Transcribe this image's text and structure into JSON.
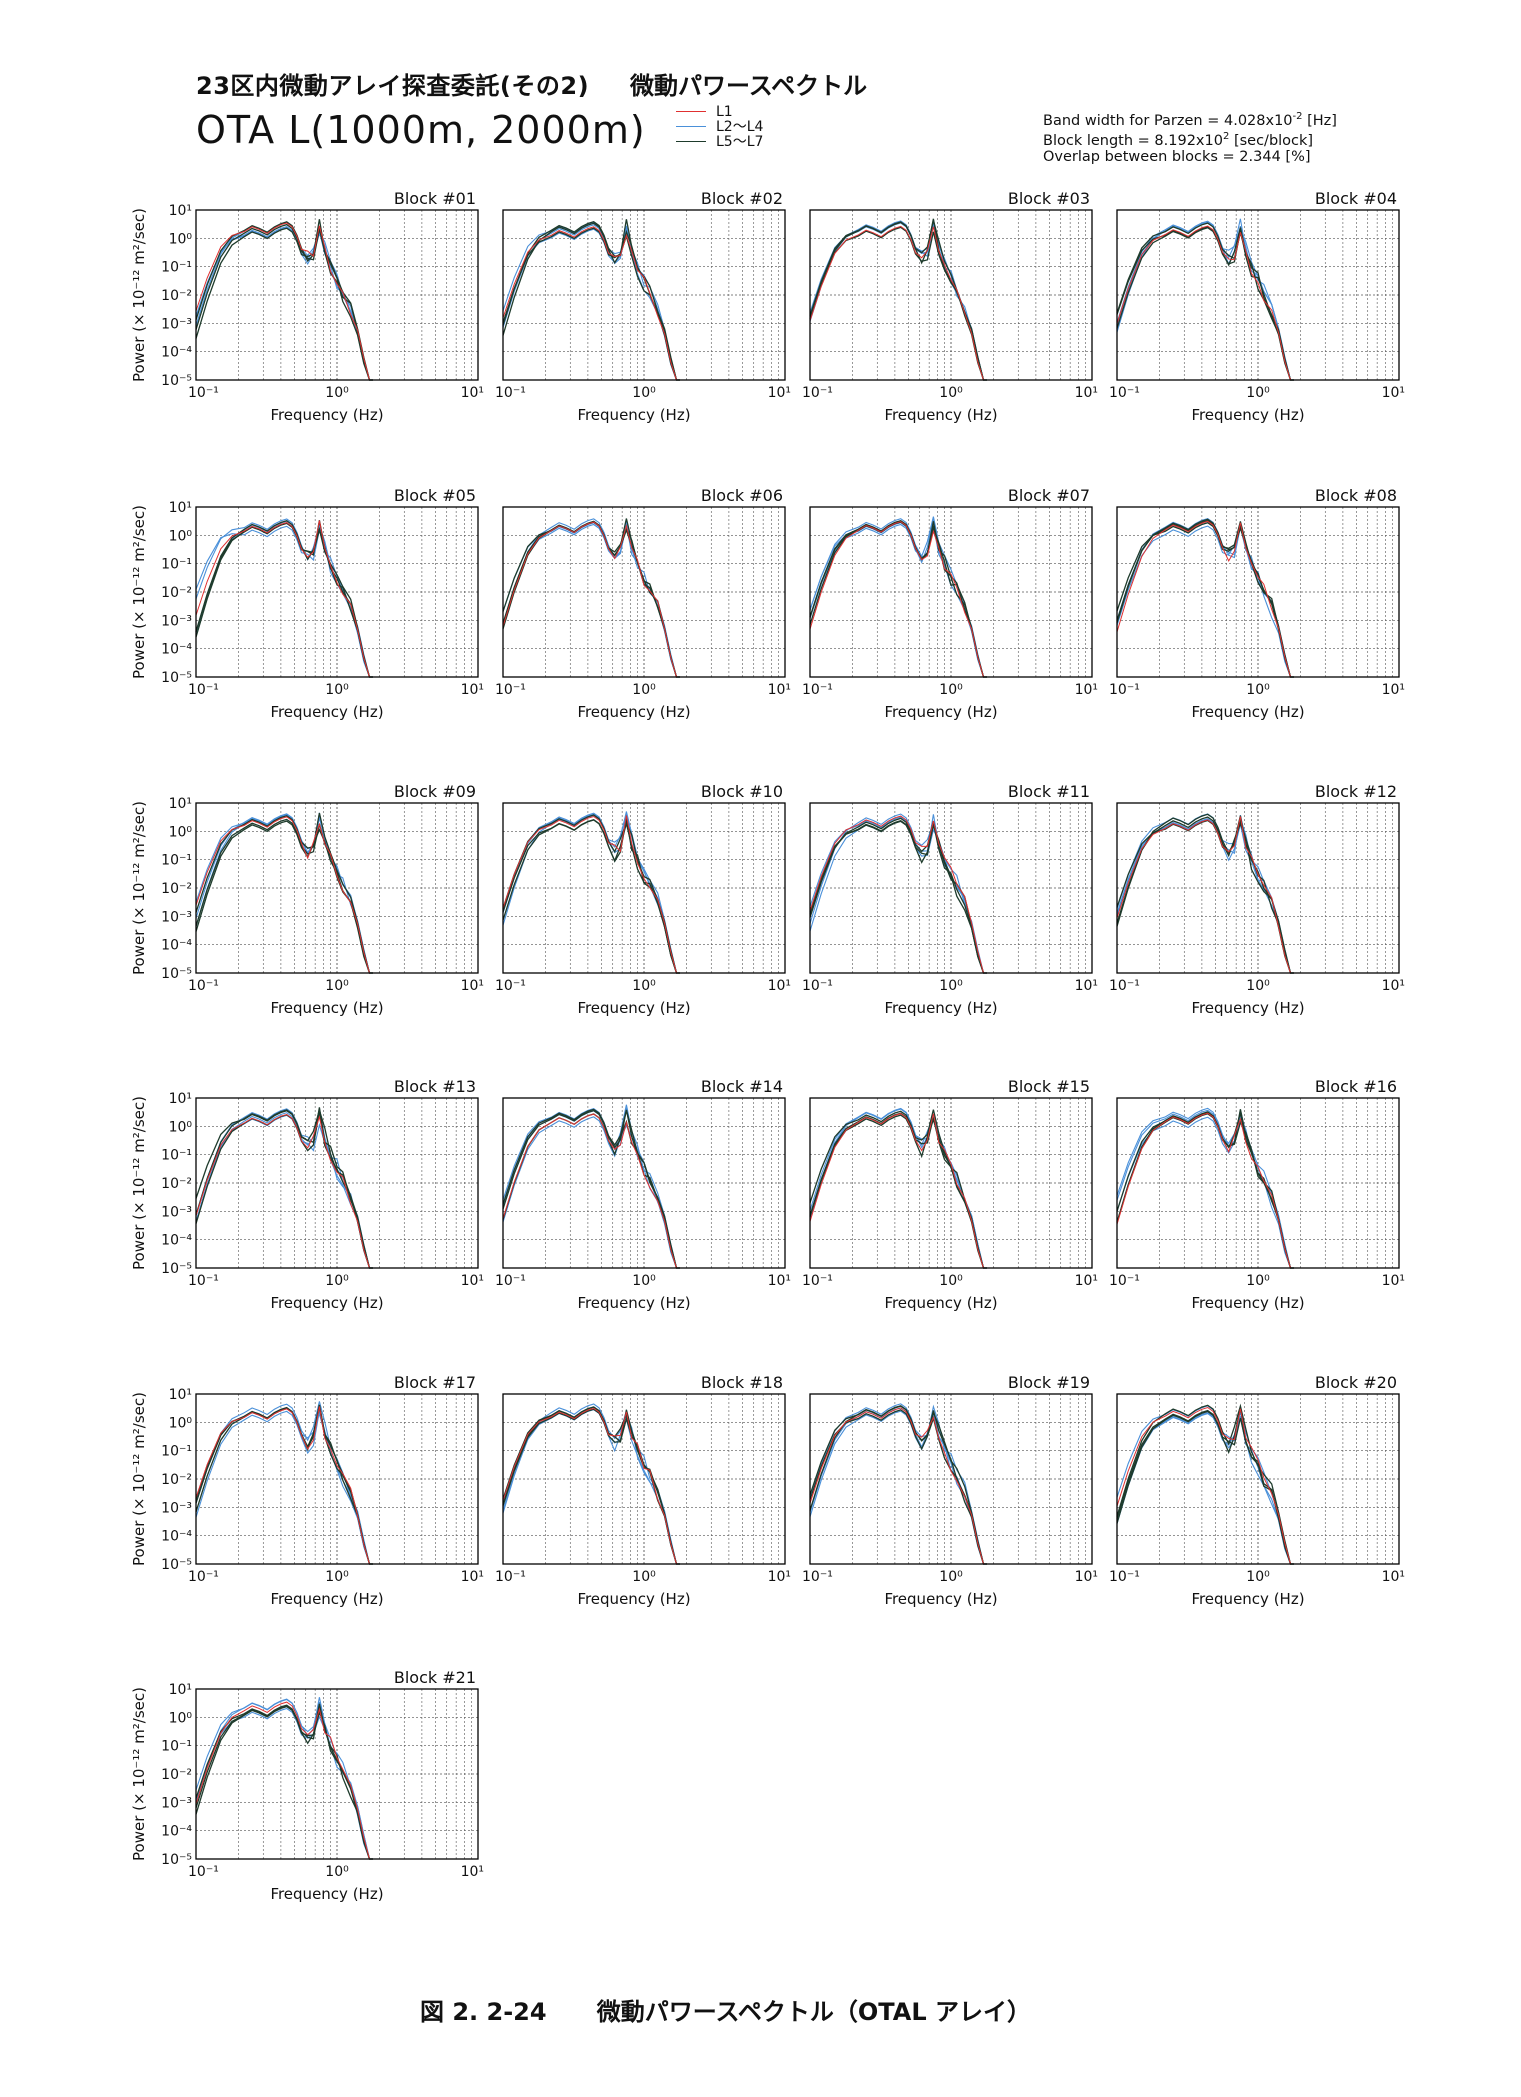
{
  "header": {
    "subtitle_left": "23区内微動アレイ探査委託(その2)",
    "subtitle_right": "微動パワースペクトル",
    "title": "OTA  L(1000m, 2000m)"
  },
  "legend": [
    {
      "label": "L1",
      "color": "#e03030"
    },
    {
      "label": "L2〜L4",
      "color": "#4a90d9"
    },
    {
      "label": "L5〜L7",
      "color": "#1e3b2c"
    }
  ],
  "params": {
    "bandwidth_prefix": "Band width for Parzen = 4.028x10",
    "bandwidth_exp": "-2",
    "bandwidth_unit": " [Hz]",
    "block_length_prefix": "Block length = 8.192x10",
    "block_length_exp": "2",
    "block_length_unit": " [sec/block]",
    "overlap": "Overlap between blocks = 2.344 [%]"
  },
  "colors": {
    "l1": "#e03030",
    "l2_l4": "#4a90d9",
    "l5_l7": "#1e3b2c",
    "grid": "#555555",
    "axis": "#000000"
  },
  "caption": "図 2. 2-24      微動パワースペクトル（OTAL アレイ）",
  "chart_data": {
    "type": "line",
    "xlabel": "Frequency (Hz)",
    "ylabel": "Power (× 10⁻¹² m²/sec)",
    "xscale": "log",
    "yscale": "log",
    "xlim": [
      0.1,
      10
    ],
    "ylim": [
      1e-05,
      10
    ],
    "x_tick_labels": [
      "10⁻¹",
      "10⁰",
      "10¹"
    ],
    "y_tick_labels": [
      "10¹",
      "10⁰",
      "10⁻¹",
      "10⁻²",
      "10⁻³",
      "10⁻⁴",
      "10⁻⁵"
    ],
    "grid": true,
    "series_groups": [
      "L1",
      "L2〜L4",
      "L5〜L7"
    ],
    "spectrum_shape": {
      "frequency_hz": [
        0.1,
        0.12,
        0.15,
        0.18,
        0.22,
        0.25,
        0.28,
        0.32,
        0.36,
        0.4,
        0.44,
        0.48,
        0.52,
        0.56,
        0.62,
        0.68,
        0.75,
        0.82,
        0.9,
        1.0,
        1.1,
        1.25,
        1.4,
        1.55,
        1.7,
        1.8
      ],
      "power": [
        0.0005,
        0.01,
        0.2,
        0.8,
        1.5,
        2.2,
        1.8,
        1.3,
        2.0,
        2.6,
        3.0,
        2.2,
        1.0,
        0.35,
        0.18,
        0.3,
        2.4,
        0.4,
        0.1,
        0.03,
        0.012,
        0.003,
        0.0005,
        5e-05,
        5e-06,
        1e-06
      ]
    },
    "blocks": [
      "Block #01",
      "Block #02",
      "Block #03",
      "Block #04",
      "Block #05",
      "Block #06",
      "Block #07",
      "Block #08",
      "Block #09",
      "Block #10",
      "Block #11",
      "Block #12",
      "Block #13",
      "Block #14",
      "Block #15",
      "Block #16",
      "Block #17",
      "Block #18",
      "Block #19",
      "Block #20",
      "Block #21"
    ]
  }
}
